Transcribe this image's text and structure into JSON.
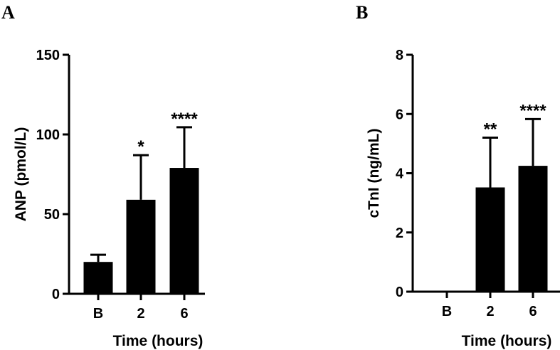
{
  "chart_data": [
    {
      "type": "bar",
      "panel": "A",
      "categories": [
        "B",
        "2",
        "6"
      ],
      "values": [
        20,
        59,
        79
      ],
      "error_upper": [
        24.5,
        87,
        104.5
      ],
      "annotations": [
        "",
        "*",
        "****"
      ],
      "ylabel": "ANP (pmol/L)",
      "xlabel": "Time (hours)",
      "ylim": [
        0,
        150
      ],
      "yticks": [
        0,
        50,
        100,
        150
      ],
      "grid": false,
      "color": "#000000"
    },
    {
      "type": "bar",
      "panel": "B",
      "categories": [
        "B",
        "2",
        "6"
      ],
      "values": [
        0,
        3.52,
        4.25
      ],
      "error_upper": [
        0,
        5.2,
        5.83
      ],
      "annotations": [
        "",
        "**",
        "****"
      ],
      "ylabel": "cTnI (ng/mL)",
      "xlabel": "Time (hours)",
      "ylim": [
        0,
        8
      ],
      "yticks": [
        0,
        2,
        4,
        6,
        8
      ],
      "grid": false,
      "color": "#000000"
    }
  ]
}
